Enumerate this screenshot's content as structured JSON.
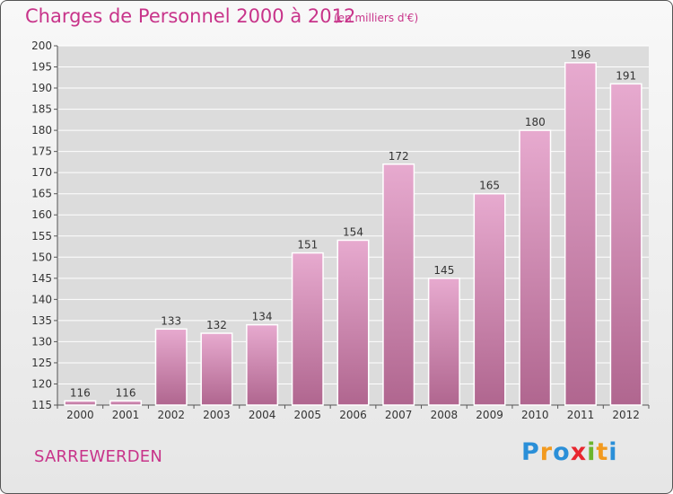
{
  "header": {
    "title": "Charges de Personnel 2000 à 2012",
    "subtitle": "(en milliers d'€)"
  },
  "footer": {
    "city": "SARREWERDEN",
    "logo_letters": [
      {
        "char": "P",
        "color": "#2a8fd8"
      },
      {
        "char": "r",
        "color": "#f29a1f"
      },
      {
        "char": "o",
        "color": "#2a8fd8"
      },
      {
        "char": "x",
        "color": "#e8262e"
      },
      {
        "char": "i",
        "color": "#6cb52d"
      },
      {
        "char": "t",
        "color": "#f29a1f"
      },
      {
        "char": "i",
        "color": "#2a8fd8"
      }
    ]
  },
  "colors": {
    "bar_top": "#e7aacf",
    "bar_bottom": "#b0668f",
    "accent": "#c8348a",
    "grid": "#ffffff"
  },
  "chart_data": {
    "type": "bar",
    "title": "Charges de Personnel 2000 à 2012",
    "subtitle": "(en milliers d'€)",
    "xlabel": "",
    "ylabel": "",
    "categories": [
      "2000",
      "2001",
      "2002",
      "2003",
      "2004",
      "2005",
      "2006",
      "2007",
      "2008",
      "2009",
      "2010",
      "2011",
      "2012"
    ],
    "values": [
      116,
      116,
      133,
      132,
      134,
      151,
      154,
      172,
      145,
      165,
      180,
      196,
      191
    ],
    "ylim": [
      115,
      200
    ],
    "yticks": [
      115,
      120,
      125,
      130,
      135,
      140,
      145,
      150,
      155,
      160,
      165,
      170,
      175,
      180,
      185,
      190,
      195,
      200
    ],
    "grid": true,
    "data_labels": true
  }
}
